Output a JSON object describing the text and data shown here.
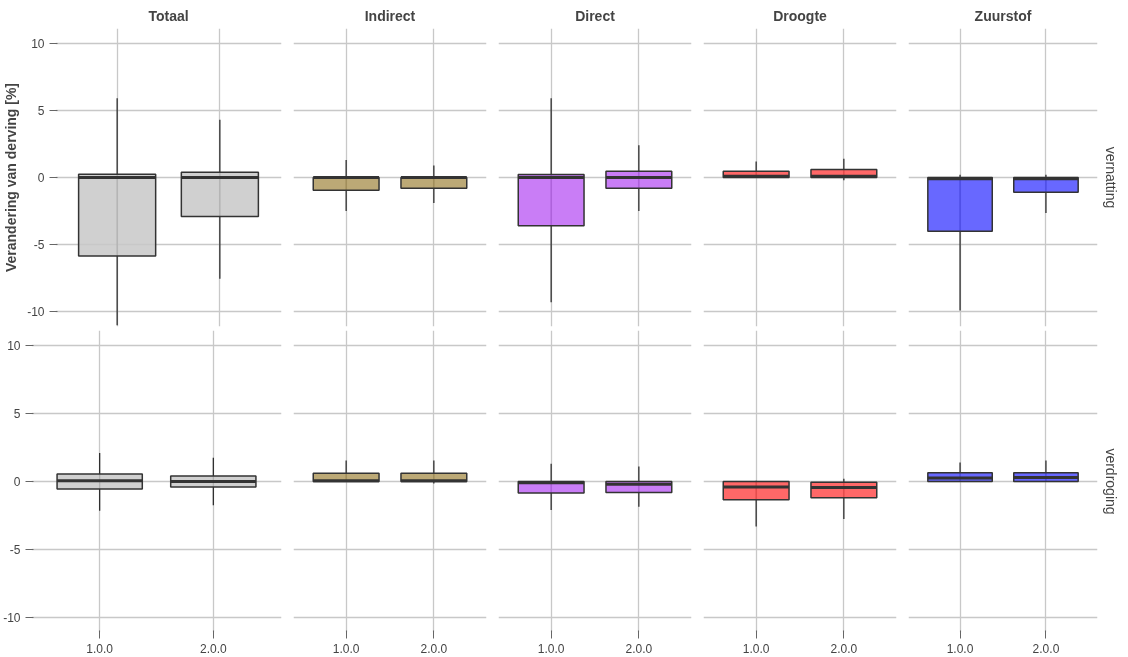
{
  "chart_data": [
    {
      "type": "box",
      "title": "Totaal",
      "ylabel": "Verandering van derving [%]",
      "categories": [
        "1.0.0",
        "2.0.0"
      ],
      "color": "#c8c8c8",
      "ylim": [
        -11.1,
        11.1
      ],
      "yticks": [
        -10,
        -5,
        0,
        5,
        10
      ],
      "grid": true,
      "tick_labels": "y",
      "boxes": [
        {
          "low": -11.0,
          "q1": -5.85,
          "median": 0,
          "q3": 0.25,
          "high": 5.9
        },
        {
          "low": -7.55,
          "q1": -2.9,
          "median": 0,
          "q3": 0.4,
          "high": 4.3
        }
      ]
    },
    {
      "type": "box",
      "title": "Indirect",
      "categories": [
        "1.0.0",
        "2.0.0"
      ],
      "color": "#b09a5e",
      "ylim": [
        -11.1,
        11.1
      ],
      "yticks": [
        -10,
        -5,
        0,
        5,
        10
      ],
      "grid": true,
      "tick_labels": false,
      "boxes": [
        {
          "low": -2.5,
          "q1": -0.95,
          "median": 0,
          "q3": 0,
          "high": 1.3
        },
        {
          "low": -1.9,
          "q1": -0.8,
          "median": 0,
          "q3": 0,
          "high": 0.9
        }
      ]
    },
    {
      "type": "box",
      "title": "Direct",
      "categories": [
        "1.0.0",
        "2.0.0"
      ],
      "color": "#c066f5",
      "ylim": [
        -11.1,
        11.1
      ],
      "yticks": [
        -10,
        -5,
        0,
        5,
        10
      ],
      "grid": true,
      "tick_labels": false,
      "boxes": [
        {
          "low": -9.3,
          "q1": -3.6,
          "median": 0,
          "q3": 0.22,
          "high": 5.9
        },
        {
          "low": -2.5,
          "q1": -0.8,
          "median": 0,
          "q3": 0.47,
          "high": 2.4
        }
      ]
    },
    {
      "type": "box",
      "title": "Droogte",
      "categories": [
        "1.0.0",
        "2.0.0"
      ],
      "color": "#ff4d4d",
      "ylim": [
        -11.1,
        11.1
      ],
      "yticks": [
        -10,
        -5,
        0,
        5,
        10
      ],
      "grid": true,
      "tick_labels": false,
      "boxes": [
        {
          "low": 0,
          "q1": 0,
          "median": 0.1,
          "q3": 0.47,
          "high": 1.2
        },
        {
          "low": -0.2,
          "q1": 0,
          "median": 0.1,
          "q3": 0.6,
          "high": 1.4
        }
      ]
    },
    {
      "type": "box",
      "title": "Zuurstof",
      "annotations": [
        "vernatting"
      ],
      "categories": [
        "1.0.0",
        "2.0.0"
      ],
      "color": "#4d4dff",
      "ylim": [
        -11.1,
        11.1
      ],
      "yticks": [
        -10,
        -5,
        0,
        5,
        10
      ],
      "grid": true,
      "tick_labels": false,
      "boxes": [
        {
          "low": -9.9,
          "q1": -4.0,
          "median": -0.1,
          "q3": 0,
          "high": 0.2
        },
        {
          "low": -2.65,
          "q1": -1.1,
          "median": -0.1,
          "q3": 0,
          "high": 0.2
        }
      ]
    },
    {
      "type": "box",
      "categories": [
        "1.0.0",
        "2.0.0"
      ],
      "color": "#c8c8c8",
      "ylim": [
        -11.1,
        11.1
      ],
      "yticks": [
        -10,
        -5,
        0,
        5,
        10
      ],
      "grid": true,
      "boxes": [
        {
          "low": -2.15,
          "q1": -0.55,
          "median": 0.05,
          "q3": 0.55,
          "high": 2.1
        },
        {
          "low": -1.75,
          "q1": -0.4,
          "median": 0,
          "q3": 0.4,
          "high": 1.75
        }
      ]
    },
    {
      "type": "box",
      "categories": [
        "1.0.0",
        "2.0.0"
      ],
      "color": "#b09a5e",
      "ylim": [
        -11.1,
        11.1
      ],
      "yticks": [
        -10,
        -5,
        0,
        5,
        10
      ],
      "grid": true,
      "tick_labels": "x",
      "boxes": [
        {
          "low": 0,
          "q1": 0,
          "median": 0.05,
          "q3": 0.6,
          "high": 1.55
        },
        {
          "low": -0.15,
          "q1": 0,
          "median": 0.05,
          "q3": 0.6,
          "high": 1.55
        }
      ]
    },
    {
      "type": "box",
      "categories": [
        "1.0.0",
        "2.0.0"
      ],
      "color": "#c066f5",
      "ylim": [
        -11.1,
        11.1
      ],
      "yticks": [
        -10,
        -5,
        0,
        5,
        10
      ],
      "grid": true,
      "tick_labels": "x",
      "boxes": [
        {
          "low": -2.1,
          "q1": -0.85,
          "median": -0.1,
          "q3": 0,
          "high": 1.3
        },
        {
          "low": -1.85,
          "q1": -0.8,
          "median": -0.2,
          "q3": 0,
          "high": 1.1
        }
      ]
    },
    {
      "type": "box",
      "categories": [
        "1.0.0",
        "2.0.0"
      ],
      "color": "#ff4d4d",
      "ylim": [
        -11.1,
        11.1
      ],
      "yticks": [
        -10,
        -5,
        0,
        5,
        10
      ],
      "grid": true,
      "tick_labels": "x",
      "boxes": [
        {
          "low": -3.3,
          "q1": -1.35,
          "median": -0.4,
          "q3": 0,
          "high": 0.05
        },
        {
          "low": -2.75,
          "q1": -1.2,
          "median": -0.45,
          "q3": -0.05,
          "high": 0.2
        }
      ]
    },
    {
      "type": "box",
      "annotations": [
        "verdroging"
      ],
      "categories": [
        "1.0.0",
        "2.0.0"
      ],
      "color": "#4d4dff",
      "ylim": [
        -11.1,
        11.1
      ],
      "yticks": [
        -10,
        -5,
        0,
        5,
        10
      ],
      "grid": true,
      "tick_labels": "x",
      "boxes": [
        {
          "low": 0,
          "q1": 0,
          "median": 0.25,
          "q3": 0.65,
          "high": 1.4
        },
        {
          "low": 0,
          "q1": 0,
          "median": 0.3,
          "q3": 0.65,
          "high": 1.55
        }
      ]
    }
  ]
}
